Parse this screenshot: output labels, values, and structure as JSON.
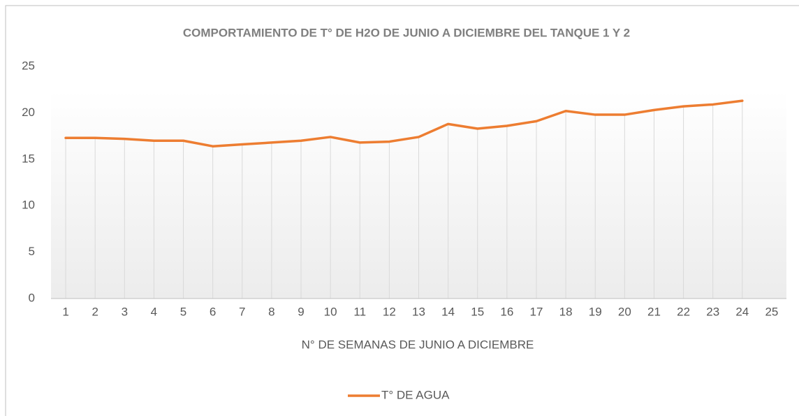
{
  "chart_data": {
    "type": "line",
    "title": "COMPORTAMIENTO DE T° DE H2O DE JUNIO A DICIEMBRE DEL TANQUE 1 Y 2",
    "x_label": "N° DE SEMANAS DE JUNIO A DICIEMBRE",
    "categories": [
      "1",
      "2",
      "3",
      "4",
      "5",
      "6",
      "7",
      "8",
      "9",
      "10",
      "11",
      "12",
      "13",
      "14",
      "15",
      "16",
      "17",
      "18",
      "19",
      "20",
      "21",
      "22",
      "23",
      "24",
      "25"
    ],
    "series": [
      {
        "name": "T° DE AGUA",
        "color": "#ed7d31",
        "values": [
          17.3,
          17.3,
          17.2,
          17.0,
          17.0,
          16.4,
          16.6,
          16.8,
          17.0,
          17.4,
          16.8,
          16.9,
          17.4,
          18.8,
          18.3,
          18.6,
          19.1,
          20.2,
          19.8,
          19.8,
          20.3,
          20.7,
          20.9,
          21.3,
          null
        ]
      }
    ],
    "ylim": [
      0,
      25
    ],
    "yticks": [
      0,
      5,
      10,
      15,
      20,
      25
    ],
    "drop_lines": true,
    "legend": "bottom"
  }
}
